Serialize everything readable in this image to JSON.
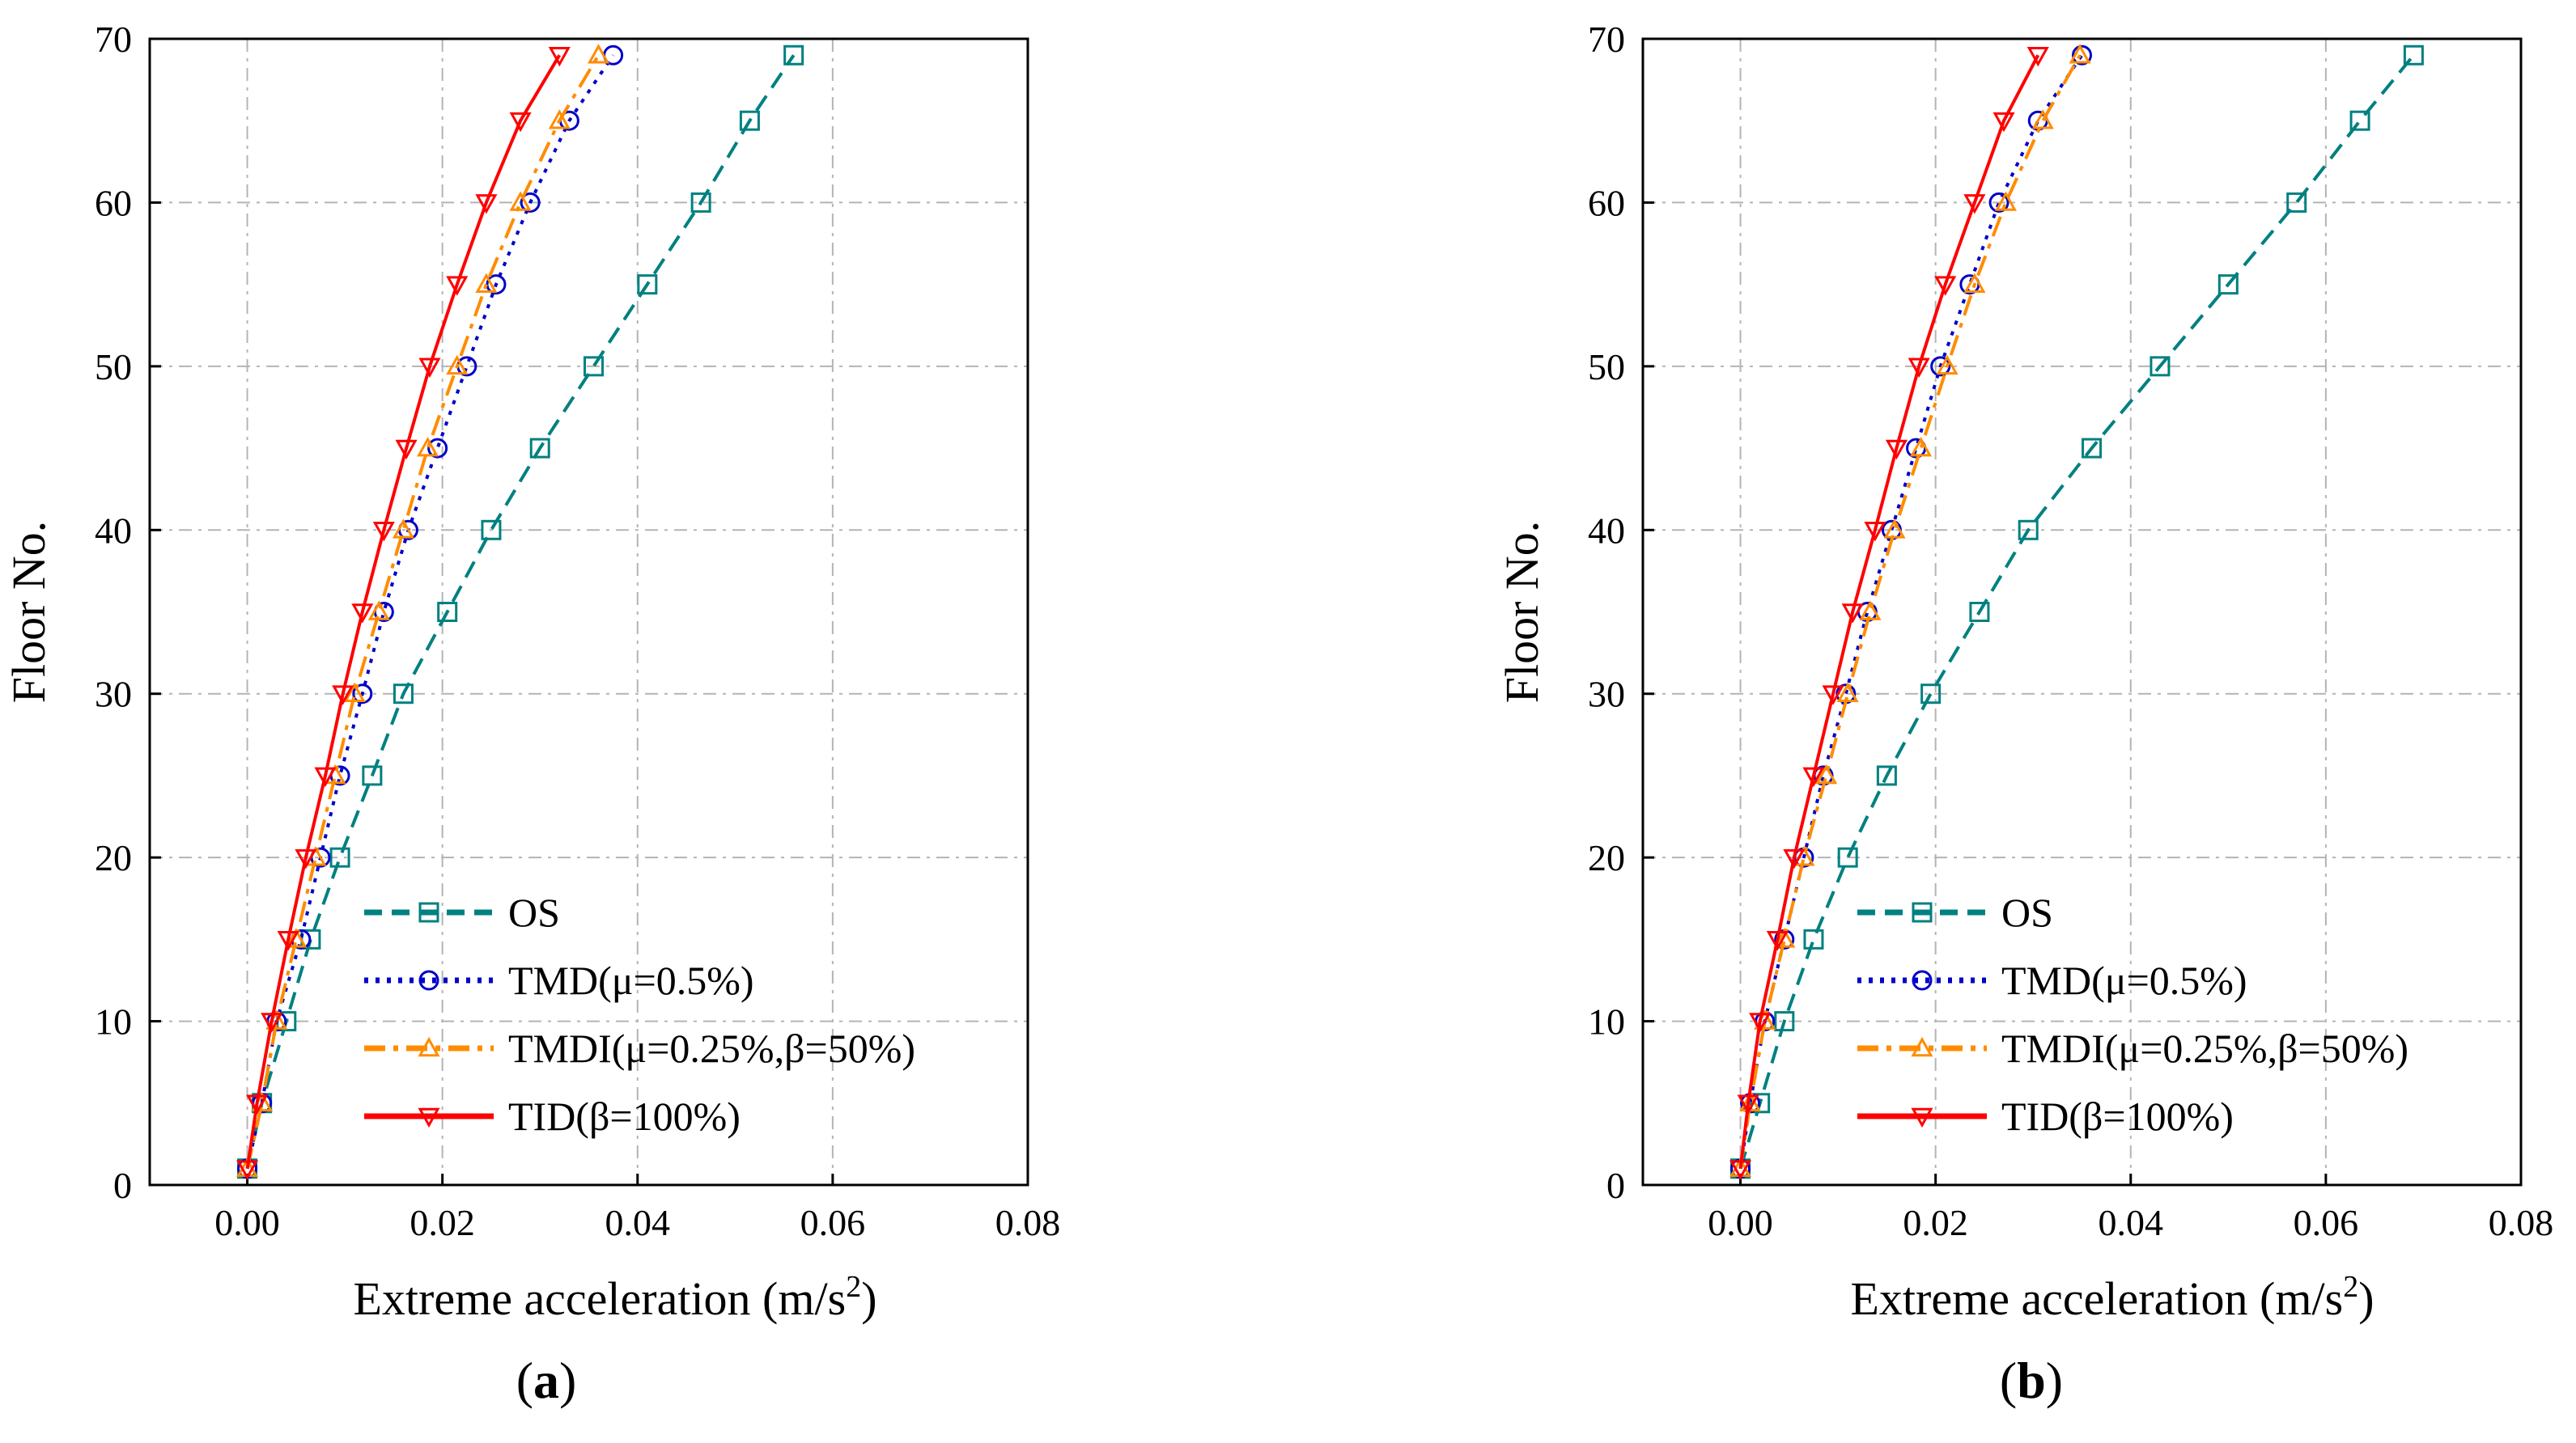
{
  "figure": {
    "panels": [
      {
        "label_open": "(",
        "label_letter": "a",
        "label_close": ")"
      },
      {
        "label_open": "(",
        "label_letter": "b",
        "label_close": ")"
      }
    ]
  },
  "colors": {
    "OS": "#008080",
    "TMD": "#0000c8",
    "TMDI": "#ff8c00",
    "TID": "#ff0000",
    "grid": "#b4b4b4",
    "axis": "#000000"
  },
  "chart_data": [
    {
      "type": "line",
      "panel": "a",
      "xlabel": "Extreme acceleration (m/s",
      "xlabel_sup": "2",
      "xlabel_close": ")",
      "ylabel": "Floor No.",
      "xlim": [
        -0.01,
        0.08
      ],
      "ylim": [
        0,
        70
      ],
      "xticks": [
        "0.00",
        "0.02",
        "0.04",
        "0.06",
        "0.08"
      ],
      "xtick_values": [
        0.0,
        0.02,
        0.04,
        0.06,
        0.08
      ],
      "yticks": [
        "0",
        "10",
        "20",
        "30",
        "40",
        "50",
        "60",
        "70"
      ],
      "ytick_values": [
        0,
        10,
        20,
        30,
        40,
        50,
        60,
        70
      ],
      "grid": true,
      "legend_position": "bottom-center",
      "series": [
        {
          "name": "OS",
          "key": "OS",
          "marker": "square",
          "dash": "dash",
          "points": [
            [
              0.0,
              1
            ],
            [
              0.0015,
              5
            ],
            [
              0.004,
              10
            ],
            [
              0.0065,
              15
            ],
            [
              0.0095,
              20
            ],
            [
              0.0128,
              25
            ],
            [
              0.016,
              30
            ],
            [
              0.0205,
              35
            ],
            [
              0.025,
              40
            ],
            [
              0.03,
              45
            ],
            [
              0.0355,
              50
            ],
            [
              0.041,
              55
            ],
            [
              0.0465,
              60
            ],
            [
              0.0515,
              65
            ],
            [
              0.056,
              69
            ]
          ]
        },
        {
          "name": "TMD(μ=0.5%)",
          "key": "TMD",
          "marker": "circle",
          "dash": "dot",
          "points": [
            [
              0.0,
              1
            ],
            [
              0.0015,
              5
            ],
            [
              0.003,
              10
            ],
            [
              0.0055,
              15
            ],
            [
              0.0075,
              20
            ],
            [
              0.0095,
              25
            ],
            [
              0.0118,
              30
            ],
            [
              0.014,
              35
            ],
            [
              0.0165,
              40
            ],
            [
              0.0195,
              45
            ],
            [
              0.0225,
              50
            ],
            [
              0.0255,
              55
            ],
            [
              0.029,
              60
            ],
            [
              0.033,
              65
            ],
            [
              0.0375,
              69
            ]
          ]
        },
        {
          "name": "TMDI(μ=0.25%,β=50%)",
          "key": "TMDI",
          "marker": "triangle-up",
          "dash": "dashdot",
          "points": [
            [
              0.0,
              1
            ],
            [
              0.0015,
              5
            ],
            [
              0.003,
              10
            ],
            [
              0.005,
              15
            ],
            [
              0.007,
              20
            ],
            [
              0.009,
              25
            ],
            [
              0.011,
              30
            ],
            [
              0.0135,
              35
            ],
            [
              0.016,
              40
            ],
            [
              0.0185,
              45
            ],
            [
              0.0215,
              50
            ],
            [
              0.0245,
              55
            ],
            [
              0.028,
              60
            ],
            [
              0.032,
              65
            ],
            [
              0.036,
              69
            ]
          ]
        },
        {
          "name": "TID(β=100%)",
          "key": "TID",
          "marker": "triangle-down",
          "dash": "solid",
          "points": [
            [
              0.0,
              1
            ],
            [
              0.001,
              5
            ],
            [
              0.0025,
              10
            ],
            [
              0.0042,
              15
            ],
            [
              0.006,
              20
            ],
            [
              0.008,
              25
            ],
            [
              0.0098,
              30
            ],
            [
              0.0118,
              35
            ],
            [
              0.014,
              40
            ],
            [
              0.0163,
              45
            ],
            [
              0.0187,
              50
            ],
            [
              0.0215,
              55
            ],
            [
              0.0245,
              60
            ],
            [
              0.028,
              65
            ],
            [
              0.032,
              69
            ]
          ]
        }
      ]
    },
    {
      "type": "line",
      "panel": "b",
      "xlabel": "Extreme acceleration (m/s",
      "xlabel_sup": "2",
      "xlabel_close": ")",
      "ylabel": "Floor No.",
      "xlim": [
        -0.01,
        0.08
      ],
      "ylim": [
        0,
        70
      ],
      "xticks": [
        "0.00",
        "0.02",
        "0.04",
        "0.06",
        "0.08"
      ],
      "xtick_values": [
        0.0,
        0.02,
        0.04,
        0.06,
        0.08
      ],
      "yticks": [
        "0",
        "10",
        "20",
        "30",
        "40",
        "50",
        "60",
        "70"
      ],
      "ytick_values": [
        0,
        10,
        20,
        30,
        40,
        50,
        60,
        70
      ],
      "grid": true,
      "legend_position": "bottom-center",
      "series": [
        {
          "name": "OS",
          "key": "OS",
          "marker": "square",
          "dash": "dash",
          "points": [
            [
              0.0,
              1
            ],
            [
              0.002,
              5
            ],
            [
              0.0045,
              10
            ],
            [
              0.0075,
              15
            ],
            [
              0.011,
              20
            ],
            [
              0.015,
              25
            ],
            [
              0.0195,
              30
            ],
            [
              0.0245,
              35
            ],
            [
              0.0295,
              40
            ],
            [
              0.036,
              45
            ],
            [
              0.043,
              50
            ],
            [
              0.05,
              55
            ],
            [
              0.057,
              60
            ],
            [
              0.0635,
              65
            ],
            [
              0.069,
              69
            ]
          ]
        },
        {
          "name": "TMD(μ=0.5%)",
          "key": "TMD",
          "marker": "circle",
          "dash": "dot",
          "points": [
            [
              0.0,
              1
            ],
            [
              0.001,
              5
            ],
            [
              0.0025,
              10
            ],
            [
              0.0045,
              15
            ],
            [
              0.0065,
              20
            ],
            [
              0.0085,
              25
            ],
            [
              0.0108,
              30
            ],
            [
              0.013,
              35
            ],
            [
              0.0155,
              40
            ],
            [
              0.018,
              45
            ],
            [
              0.0205,
              50
            ],
            [
              0.0235,
              55
            ],
            [
              0.0265,
              60
            ],
            [
              0.0305,
              65
            ],
            [
              0.035,
              69
            ]
          ]
        },
        {
          "name": "TMDI(μ=0.25%,β=50%)",
          "key": "TMDI",
          "marker": "triangle-up",
          "dash": "dashdot",
          "points": [
            [
              0.0,
              1
            ],
            [
              0.001,
              5
            ],
            [
              0.0025,
              10
            ],
            [
              0.0045,
              15
            ],
            [
              0.0065,
              20
            ],
            [
              0.0088,
              25
            ],
            [
              0.011,
              30
            ],
            [
              0.0133,
              35
            ],
            [
              0.0158,
              40
            ],
            [
              0.0185,
              45
            ],
            [
              0.0212,
              50
            ],
            [
              0.024,
              55
            ],
            [
              0.0272,
              60
            ],
            [
              0.031,
              65
            ],
            [
              0.0348,
              69
            ]
          ]
        },
        {
          "name": "TID(β=100%)",
          "key": "TID",
          "marker": "triangle-down",
          "dash": "solid",
          "points": [
            [
              0.0,
              1
            ],
            [
              0.0008,
              5
            ],
            [
              0.002,
              10
            ],
            [
              0.0038,
              15
            ],
            [
              0.0055,
              20
            ],
            [
              0.0075,
              25
            ],
            [
              0.0095,
              30
            ],
            [
              0.0115,
              35
            ],
            [
              0.0138,
              40
            ],
            [
              0.016,
              45
            ],
            [
              0.0183,
              50
            ],
            [
              0.021,
              55
            ],
            [
              0.024,
              60
            ],
            [
              0.027,
              65
            ],
            [
              0.0305,
              69
            ]
          ]
        }
      ]
    }
  ]
}
